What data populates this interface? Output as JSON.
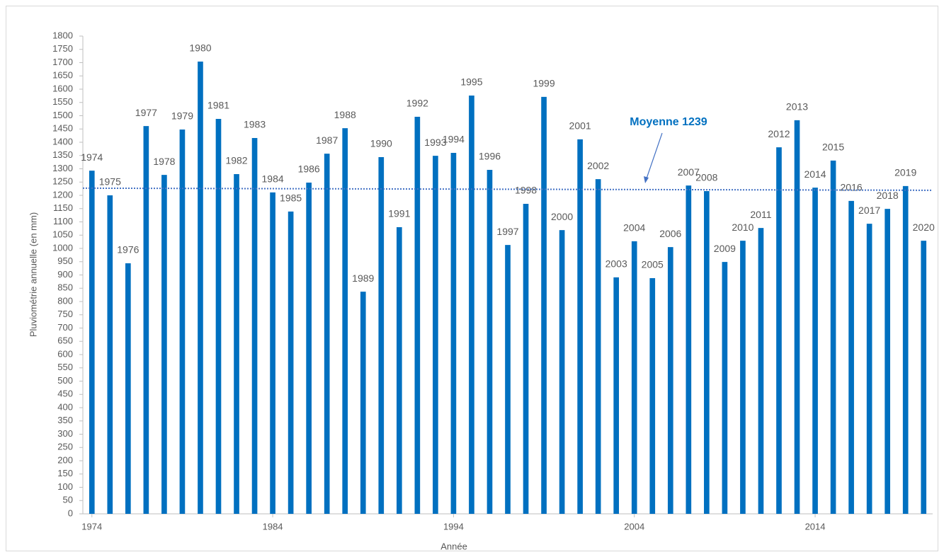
{
  "chart_data": {
    "type": "bar",
    "y_label": "Pluviométrie annuelle (en mm)",
    "x_label": "Année",
    "annotation": "Moyenne 1239",
    "color": "#0070c0",
    "trendline": {
      "from": 1227,
      "to": 1219,
      "color": "#4472c4"
    },
    "x": [
      1974,
      1975,
      1976,
      1977,
      1978,
      1979,
      1980,
      1981,
      1982,
      1983,
      1984,
      1985,
      1986,
      1987,
      1988,
      1989,
      1990,
      1991,
      1992,
      1993,
      1994,
      1995,
      1996,
      1997,
      1998,
      1999,
      2000,
      2001,
      2002,
      2003,
      2004,
      2005,
      2006,
      2007,
      2008,
      2009,
      2010,
      2011,
      2012,
      2013,
      2014,
      2015,
      2016,
      2017,
      2018,
      2019,
      2020
    ],
    "values": [
      1293,
      1200,
      944,
      1461,
      1277,
      1448,
      1704,
      1488,
      1280,
      1416,
      1211,
      1139,
      1248,
      1357,
      1453,
      837,
      1344,
      1080,
      1496,
      1349,
      1360,
      1576,
      1296,
      1013,
      1168,
      1571,
      1069,
      1411,
      1261,
      891,
      1027,
      888,
      1005,
      1237,
      1216,
      949,
      1029,
      1077,
      1381,
      1483,
      1229,
      1331,
      1179,
      1093,
      1149,
      1235,
      1029
    ],
    "xlim": [
      1973.5,
      2020.5
    ],
    "xticks": [
      1974,
      1984,
      1994,
      2004,
      2014
    ],
    "ylim": [
      0,
      1800
    ],
    "yticks": [
      0,
      50,
      100,
      150,
      200,
      250,
      300,
      350,
      400,
      450,
      500,
      550,
      600,
      650,
      700,
      750,
      800,
      850,
      900,
      950,
      1000,
      1050,
      1100,
      1150,
      1200,
      1250,
      1300,
      1350,
      1400,
      1450,
      1500,
      1550,
      1600,
      1650,
      1700,
      1750,
      1800
    ],
    "grid": false
  }
}
